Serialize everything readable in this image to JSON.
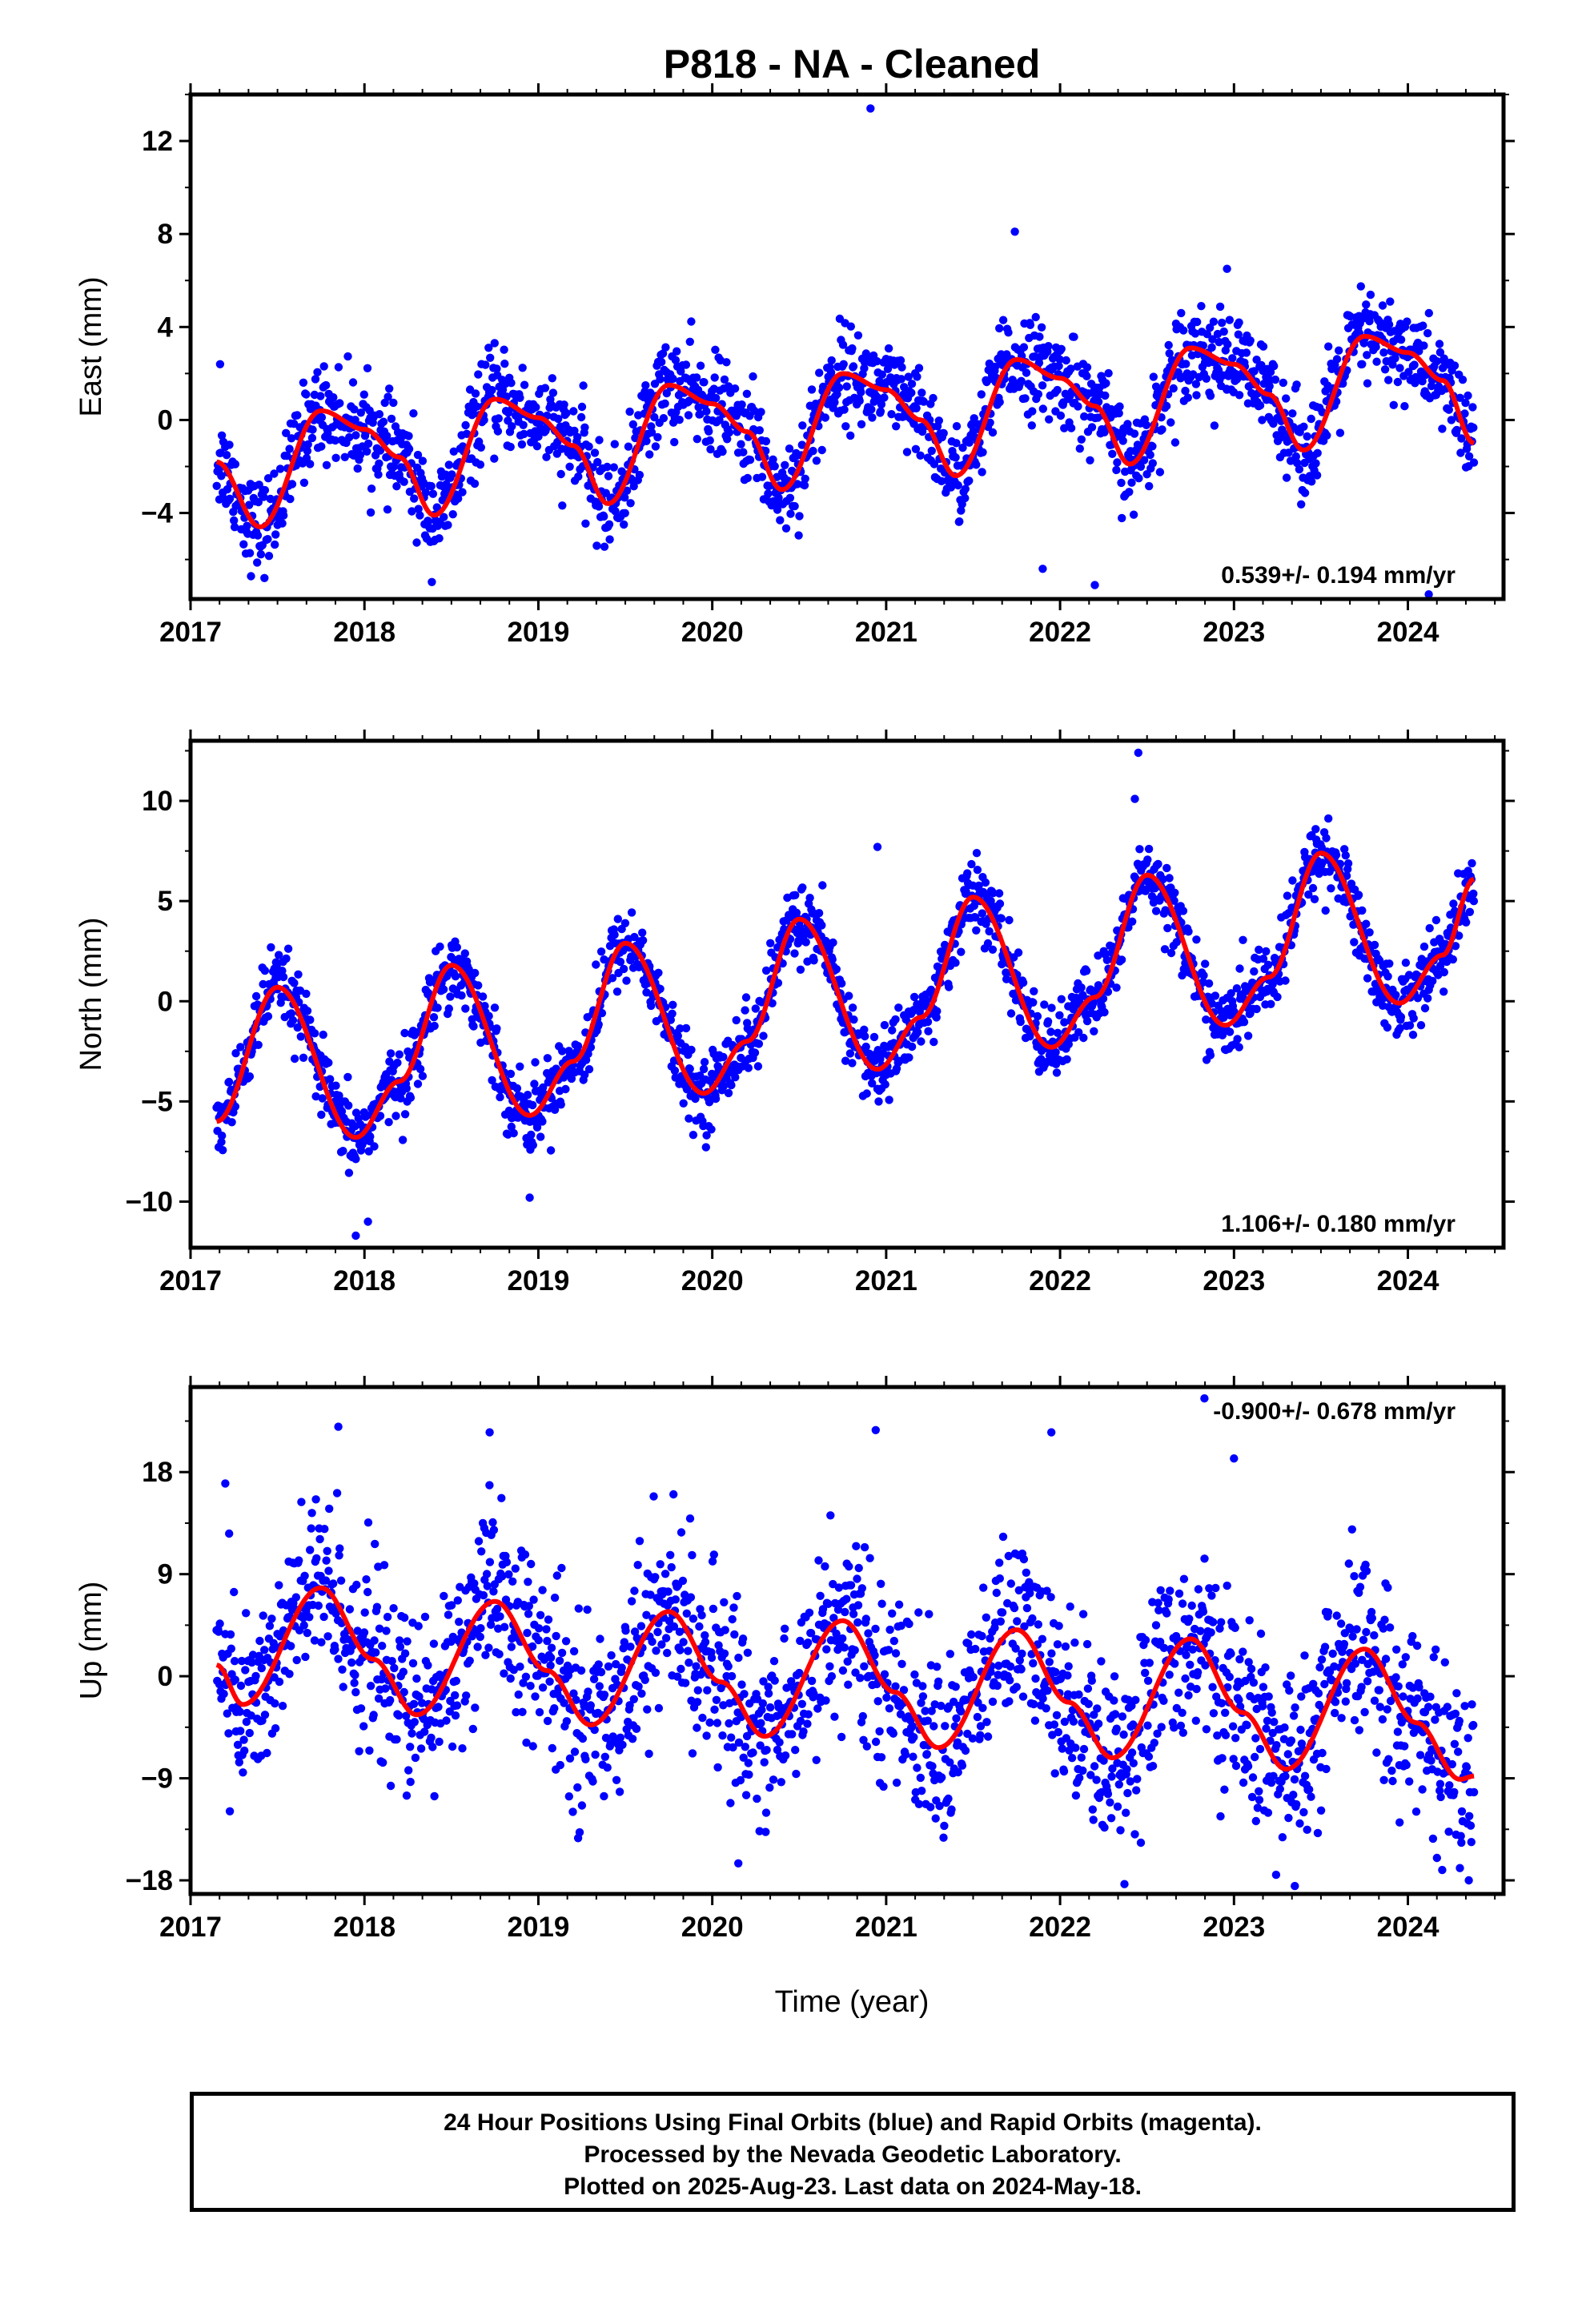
{
  "title": "P818  - NA - Cleaned",
  "xlabel": "Time (year)",
  "footer": {
    "line1": "24 Hour Positions Using Final Orbits (blue) and Rapid Orbits (magenta).",
    "line2": "Processed by the Nevada Geodetic Laboratory.",
    "line3": "Plotted on 2025-Aug-23. Last data on 2024-May-18."
  },
  "colors": {
    "points": "#0000ff",
    "fit": "#ff0000",
    "axes": "#000000"
  },
  "chart_data": [
    {
      "type": "scatter",
      "ylabel": "East (mm)",
      "rate_label": "0.539+/- 0.194 mm/yr",
      "rate_position": "bottom-right",
      "xlim": [
        2017.0,
        2024.55
      ],
      "ylim": [
        -7.7,
        14.0
      ],
      "x_ticks": [
        "2017",
        "2018",
        "2019",
        "2020",
        "2021",
        "2022",
        "2023",
        "2024"
      ],
      "y_ticks": [
        -4,
        0,
        4,
        8,
        12
      ],
      "data_start": 2017.15,
      "data_end": 2024.38,
      "series": [
        {
          "kind": "fit",
          "x": [
            2017.15,
            2017.4,
            2017.75,
            2018.0,
            2018.2,
            2018.4,
            2018.75,
            2019.0,
            2019.2,
            2019.4,
            2019.75,
            2020.0,
            2020.2,
            2020.4,
            2020.75,
            2021.0,
            2021.2,
            2021.4,
            2021.75,
            2022.0,
            2022.2,
            2022.4,
            2022.75,
            2023.0,
            2023.2,
            2023.4,
            2023.75,
            2024.0,
            2024.2,
            2024.38
          ],
          "y": [
            -1.8,
            -4.6,
            0.4,
            -0.4,
            -1.6,
            -4.1,
            0.9,
            0.1,
            -1.1,
            -3.6,
            1.5,
            0.7,
            -0.5,
            -3.0,
            2.0,
            1.3,
            0.0,
            -2.4,
            2.6,
            1.8,
            0.6,
            -1.9,
            3.1,
            2.4,
            1.1,
            -1.3,
            3.6,
            2.9,
            1.7,
            -1.0
          ]
        },
        {
          "kind": "points",
          "scatter_sd": 1.0,
          "outliers": [
            [
              2020.91,
              13.4
            ],
            [
              2021.74,
              8.1
            ],
            [
              2022.96,
              6.5
            ],
            [
              2022.2,
              -7.1
            ],
            [
              2021.9,
              -6.4
            ],
            [
              2024.12,
              -7.5
            ],
            [
              2017.17,
              2.4
            ]
          ]
        }
      ]
    },
    {
      "type": "scatter",
      "ylabel": "North (mm)",
      "rate_label": "1.106+/- 0.180 mm/yr",
      "rate_position": "bottom-right",
      "xlim": [
        2017.0,
        2024.55
      ],
      "ylim": [
        -12.3,
        13.0
      ],
      "x_ticks": [
        "2017",
        "2018",
        "2019",
        "2020",
        "2021",
        "2022",
        "2023",
        "2024"
      ],
      "y_ticks": [
        -10,
        -5,
        0,
        5,
        10
      ],
      "data_start": 2017.15,
      "data_end": 2024.38,
      "series": [
        {
          "kind": "fit",
          "x": [
            2017.15,
            2017.5,
            2017.95,
            2018.2,
            2018.5,
            2018.95,
            2019.2,
            2019.5,
            2019.95,
            2020.2,
            2020.5,
            2020.95,
            2021.2,
            2021.5,
            2021.95,
            2022.2,
            2022.5,
            2022.95,
            2023.2,
            2023.5,
            2023.95,
            2024.2,
            2024.38
          ],
          "y": [
            -6.0,
            0.7,
            -6.8,
            -4.0,
            1.8,
            -5.7,
            -3.0,
            2.9,
            -4.6,
            -2.0,
            4.1,
            -3.4,
            -0.8,
            5.2,
            -2.3,
            0.2,
            6.3,
            -1.2,
            1.2,
            7.4,
            -0.1,
            2.3,
            6.1
          ]
        },
        {
          "kind": "points",
          "scatter_sd": 0.9,
          "outliers": [
            [
              2022.45,
              12.4
            ],
            [
              2022.43,
              10.1
            ],
            [
              2020.95,
              7.7
            ],
            [
              2017.95,
              -11.7
            ],
            [
              2018.95,
              -9.8
            ],
            [
              2018.02,
              -11.0
            ]
          ]
        }
      ]
    },
    {
      "type": "scatter",
      "ylabel": "Up (mm)",
      "rate_label": "-0.900+/- 0.678 mm/yr",
      "rate_position": "top-right",
      "xlim": [
        2017.0,
        2024.55
      ],
      "ylim": [
        -19.2,
        25.5
      ],
      "x_ticks": [
        "2017",
        "2018",
        "2019",
        "2020",
        "2021",
        "2022",
        "2023",
        "2024"
      ],
      "y_ticks": [
        -18,
        -9,
        0,
        9,
        18
      ],
      "data_start": 2017.15,
      "data_end": 2024.38,
      "series": [
        {
          "kind": "fit",
          "x": [
            2017.15,
            2017.3,
            2017.75,
            2018.05,
            2018.3,
            2018.75,
            2019.05,
            2019.3,
            2019.75,
            2020.05,
            2020.3,
            2020.75,
            2021.05,
            2021.3,
            2021.75,
            2022.05,
            2022.3,
            2022.75,
            2023.05,
            2023.3,
            2023.75,
            2024.05,
            2024.3,
            2024.38
          ],
          "y": [
            1.0,
            -2.5,
            7.8,
            1.5,
            -3.4,
            6.6,
            0.5,
            -4.3,
            5.7,
            -0.5,
            -5.3,
            4.9,
            -1.4,
            -6.3,
            4.1,
            -2.3,
            -7.2,
            3.3,
            -3.2,
            -8.2,
            2.4,
            -4.1,
            -9.1,
            -8.8
          ]
        },
        {
          "kind": "points",
          "scatter_sd": 4.0,
          "outliers": [
            [
              2017.85,
              22.0
            ],
            [
              2018.72,
              21.5
            ],
            [
              2020.94,
              21.7
            ],
            [
              2021.95,
              21.5
            ],
            [
              2022.83,
              24.5
            ],
            [
              2023.0,
              19.2
            ],
            [
              2020.15,
              -16.5
            ],
            [
              2023.35,
              -18.5
            ],
            [
              2024.35,
              -18.0
            ],
            [
              2017.2,
              17.0
            ]
          ]
        }
      ]
    }
  ]
}
